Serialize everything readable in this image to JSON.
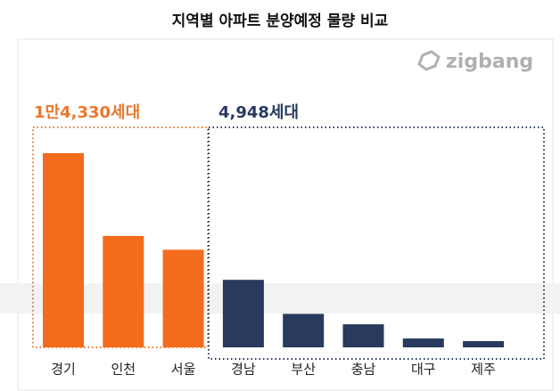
{
  "chart_data": {
    "type": "bar",
    "title": "지역별 아파트 분양예정 물량 비교",
    "logo": "zigbang",
    "categories": [
      "경기",
      "인천",
      "서울",
      "경남",
      "부산",
      "충남",
      "대구",
      "제주"
    ],
    "values": [
      6900,
      3960,
      3470,
      2400,
      1190,
      820,
      315,
      223
    ],
    "colors": [
      "#f36b1c",
      "#f36b1c",
      "#f36b1c",
      "#283a5e",
      "#283a5e",
      "#283a5e",
      "#283a5e",
      "#283a5e"
    ],
    "annotations": [
      {
        "text": "1만4,330세대",
        "color": "#e8772e"
      },
      {
        "text": "4,948세대",
        "color": "#283a5e"
      }
    ]
  }
}
